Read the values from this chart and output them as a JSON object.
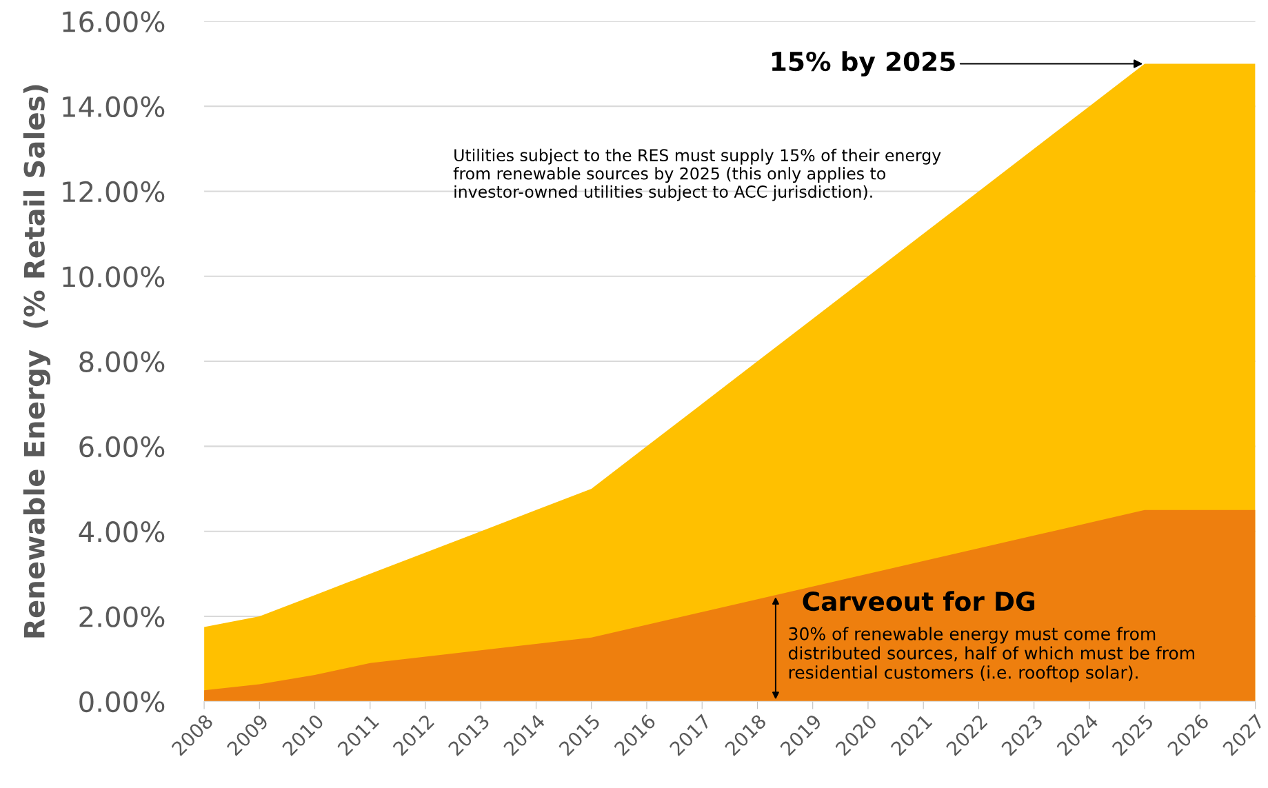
{
  "chart_data": {
    "type": "area",
    "ylabel": "Renewable Energy  (% Retail Sales)",
    "categories": [
      "2008",
      "2009",
      "2010",
      "2011",
      "2012",
      "2013",
      "2014",
      "2015",
      "2016",
      "2017",
      "2018",
      "2019",
      "2020",
      "2021",
      "2022",
      "2023",
      "2024",
      "2025",
      "2026",
      "2027"
    ],
    "series": [
      {
        "color": "#ffc000",
        "values": [
          1.75,
          2,
          2.5,
          3,
          3.5,
          4,
          4.5,
          5,
          6,
          7,
          8,
          9,
          10,
          11,
          12,
          13,
          14,
          15,
          15,
          15
        ]
      },
      {
        "color": "#ee7f0e",
        "values": [
          0.26,
          0.4,
          0.62,
          0.9,
          1.05,
          1.2,
          1.35,
          1.5,
          1.8,
          2.1,
          2.4,
          2.7,
          3,
          3.3,
          3.6,
          3.9,
          4.2,
          4.5,
          4.5,
          4.5
        ]
      }
    ],
    "ylim": [
      0,
      16
    ],
    "yticks": [
      {
        "value": 0,
        "label": "0.00%"
      },
      {
        "value": 2,
        "label": "2.00%"
      },
      {
        "value": 4,
        "label": "4.00%"
      },
      {
        "value": 6,
        "label": "6.00%"
      },
      {
        "value": 8,
        "label": "8.00%"
      },
      {
        "value": 10,
        "label": "10.00%"
      },
      {
        "value": 12,
        "label": "12.00%"
      },
      {
        "value": 14,
        "label": "14.00%"
      },
      {
        "value": 16,
        "label": "16.00%"
      }
    ],
    "grid": "y",
    "legend": false,
    "annotations": [
      {
        "text": "15% by 2025",
        "x": "2025",
        "y": 15
      },
      "Utilities subject to the RES must supply 15% of their energy\nfrom renewable sources by 2025 (this only applies to\ninvestor-owned utilities subject to ACC jurisdiction).",
      "Carveout for DG",
      "30% of renewable energy must come from\ndistributed sources, half of which must be from\nresidential customers (i.e. rooftop solar)."
    ]
  }
}
